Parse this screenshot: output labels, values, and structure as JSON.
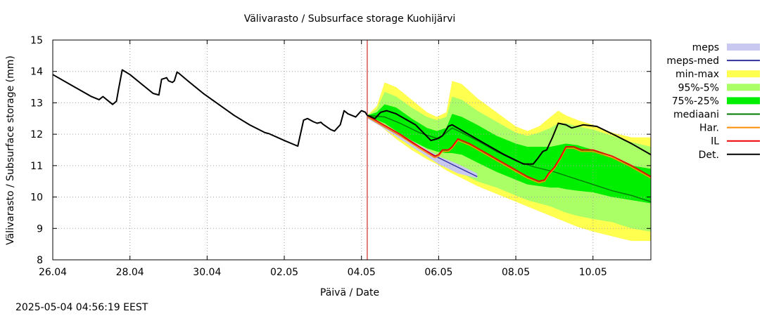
{
  "chart_data": {
    "type": "line",
    "title": "Välivarasto / Subsurface storage  Kuohijärvi",
    "xlabel": "Päivä / Date",
    "ylabel": "Välivarasto / Subsurface storage (mm)",
    "ylim": [
      8,
      15
    ],
    "xlim": [
      0,
      15.5
    ],
    "xticks": [
      {
        "x": 0,
        "label": "26.04"
      },
      {
        "x": 2,
        "label": "28.04"
      },
      {
        "x": 4,
        "label": "30.04"
      },
      {
        "x": 6,
        "label": "02.05"
      },
      {
        "x": 8,
        "label": "04.05"
      },
      {
        "x": 10,
        "label": "06.05"
      },
      {
        "x": 12,
        "label": "08.05"
      },
      {
        "x": 14,
        "label": "10.05"
      }
    ],
    "yticks": [
      8,
      9,
      10,
      11,
      12,
      13,
      14,
      15
    ],
    "grid": true,
    "legend_position": "right",
    "forecast_start_x": 8.15,
    "legend": [
      {
        "label": "meps",
        "color": "#c8c8f0",
        "kind": "band"
      },
      {
        "label": "meps-med",
        "color": "#3030a0",
        "kind": "line"
      },
      {
        "label": "min-max",
        "color": "#ffff50",
        "kind": "band"
      },
      {
        "label": "95%-5%",
        "color": "#aaff66",
        "kind": "band"
      },
      {
        "label": "75%-25%",
        "color": "#00ee00",
        "kind": "band"
      },
      {
        "label": "mediaani",
        "color": "#007a00",
        "kind": "line"
      },
      {
        "label": "Har.",
        "color": "#ff8c00",
        "kind": "line"
      },
      {
        "label": "IL",
        "color": "#ee0000",
        "kind": "line"
      },
      {
        "label": "Det.",
        "color": "#000000",
        "kind": "line"
      }
    ],
    "series": [
      {
        "name": "Det. (observed)",
        "color": "#000000",
        "x": [
          0,
          0.5,
          1,
          1.2,
          1.3,
          1.45,
          1.55,
          1.65,
          1.7,
          1.8,
          2,
          2.3,
          2.6,
          2.75,
          2.82,
          2.95,
          3.0,
          3.1,
          3.15,
          3.22,
          3.26,
          3.5,
          3.9,
          4.3,
          4.7,
          5.1,
          5.5,
          5.6,
          6,
          6.35,
          6.5,
          6.6,
          6.75,
          6.85,
          6.95,
          7.0,
          7.2,
          7.3,
          7.45,
          7.55,
          7.65,
          7.75,
          7.85,
          8.0,
          8.1,
          8.15
        ],
        "y": [
          13.9,
          13.55,
          13.2,
          13.1,
          13.2,
          13.05,
          12.95,
          13.05,
          13.4,
          14.05,
          13.9,
          13.6,
          13.3,
          13.25,
          13.75,
          13.8,
          13.7,
          13.65,
          13.7,
          13.98,
          13.95,
          13.7,
          13.3,
          12.95,
          12.6,
          12.3,
          12.05,
          12.02,
          11.8,
          11.62,
          12.45,
          12.5,
          12.4,
          12.35,
          12.38,
          12.32,
          12.15,
          12.1,
          12.3,
          12.75,
          12.65,
          12.6,
          12.55,
          12.75,
          12.7,
          12.6
        ]
      },
      {
        "name": "Det. (forecast)",
        "color": "#000000",
        "x": [
          8.15,
          8.35,
          8.5,
          8.65,
          8.9,
          9.4,
          9.8,
          9.95,
          10.1,
          10.25,
          10.35,
          10.7,
          11.2,
          11.7,
          12.2,
          12.45,
          12.55,
          12.7,
          12.8,
          12.95,
          13.1,
          13.3,
          13.45,
          13.75,
          14.1,
          14.6,
          15.0,
          15.5
        ],
        "y": [
          12.6,
          12.5,
          12.7,
          12.75,
          12.65,
          12.3,
          11.8,
          11.85,
          11.95,
          12.25,
          12.3,
          12.05,
          11.7,
          11.35,
          11.05,
          11.05,
          11.2,
          11.45,
          11.5,
          11.9,
          12.35,
          12.3,
          12.2,
          12.3,
          12.25,
          11.95,
          11.7,
          11.35
        ]
      },
      {
        "name": "IL",
        "color": "#ee0000",
        "x": [
          8.15,
          8.5,
          9.0,
          9.5,
          9.9,
          10.0,
          10.1,
          10.25,
          10.35,
          10.5,
          10.8,
          11.3,
          11.8,
          12.3,
          12.6,
          12.75,
          12.85,
          13.0,
          13.15,
          13.3,
          13.5,
          13.7,
          14.0,
          14.5,
          15.0,
          15.5
        ],
        "y": [
          12.6,
          12.35,
          12.0,
          11.6,
          11.3,
          11.35,
          11.5,
          11.5,
          11.6,
          11.85,
          11.7,
          11.35,
          11.0,
          10.65,
          10.5,
          10.55,
          10.75,
          10.95,
          11.25,
          11.6,
          11.6,
          11.5,
          11.5,
          11.3,
          11.0,
          10.65
        ]
      },
      {
        "name": "Har.",
        "color": "#ff8c00",
        "x": [
          8.15,
          8.5,
          9.0,
          9.5,
          9.9,
          10.0,
          10.1,
          10.25,
          10.35,
          10.5,
          10.8,
          11.3,
          11.8,
          12.3,
          12.6,
          12.75,
          12.85,
          13.0,
          13.15,
          13.3,
          13.5,
          13.7,
          14.0,
          14.5,
          15.0,
          15.5
        ],
        "y": [
          12.55,
          12.3,
          11.95,
          11.55,
          11.25,
          11.3,
          11.45,
          11.45,
          11.55,
          11.8,
          11.65,
          11.3,
          10.95,
          10.6,
          10.45,
          10.5,
          10.7,
          10.9,
          11.2,
          11.55,
          11.55,
          11.45,
          11.45,
          11.25,
          10.95,
          10.6
        ]
      },
      {
        "name": "meps-med",
        "color": "#3030a0",
        "x": [
          8.15,
          8.5,
          9.0,
          9.5,
          10.0,
          10.5,
          11.0
        ],
        "y": [
          12.55,
          12.3,
          11.95,
          11.6,
          11.25,
          10.95,
          10.65
        ]
      },
      {
        "name": "mediaani",
        "color": "#007a00",
        "x": [
          8.15,
          8.6,
          9.0,
          9.5,
          10.0,
          10.35,
          10.6,
          11.0,
          11.5,
          12.0,
          12.5,
          13.0,
          13.5,
          14.0,
          14.5,
          15.0,
          15.5
        ],
        "y": [
          12.6,
          12.55,
          12.35,
          12.05,
          11.85,
          12.2,
          12.05,
          11.8,
          11.45,
          11.15,
          10.95,
          10.8,
          10.6,
          10.4,
          10.2,
          10.05,
          9.85
        ]
      }
    ],
    "bands": [
      {
        "name": "meps",
        "color": "#c8c8f0",
        "x": [
          8.15,
          8.5,
          9.0,
          9.5,
          10.0,
          10.5,
          11.0
        ],
        "lower": [
          12.5,
          12.25,
          11.85,
          11.45,
          11.05,
          10.75,
          10.6
        ],
        "upper": [
          12.6,
          12.35,
          12.0,
          11.65,
          11.3,
          11.05,
          10.75
        ]
      },
      {
        "name": "min-max",
        "color": "#ffff50",
        "x": [
          8.15,
          8.4,
          8.6,
          8.9,
          9.3,
          9.7,
          9.95,
          10.2,
          10.35,
          10.6,
          11.0,
          11.5,
          12.0,
          12.3,
          12.6,
          12.9,
          13.1,
          13.3,
          13.6,
          14.0,
          14.5,
          15.0,
          15.5
        ],
        "lower": [
          12.55,
          12.35,
          12.15,
          11.85,
          11.5,
          11.2,
          11.05,
          10.85,
          10.75,
          10.6,
          10.35,
          10.1,
          9.85,
          9.7,
          9.55,
          9.4,
          9.3,
          9.2,
          9.05,
          8.9,
          8.75,
          8.6,
          8.6
        ],
        "upper": [
          12.6,
          12.9,
          13.65,
          13.5,
          13.1,
          12.7,
          12.55,
          12.7,
          13.7,
          13.6,
          13.15,
          12.7,
          12.25,
          12.1,
          12.25,
          12.55,
          12.75,
          12.6,
          12.45,
          12.3,
          12.05,
          11.9,
          11.9
        ]
      },
      {
        "name": "95%-5%",
        "color": "#aaff66",
        "x": [
          8.15,
          8.4,
          8.6,
          8.9,
          9.3,
          9.7,
          9.95,
          10.2,
          10.35,
          10.6,
          11.0,
          11.5,
          12.0,
          12.3,
          12.6,
          12.9,
          13.1,
          13.3,
          13.6,
          14.0,
          14.5,
          15.0,
          15.5
        ],
        "lower": [
          12.55,
          12.4,
          12.25,
          11.95,
          11.6,
          11.3,
          11.15,
          11.0,
          10.9,
          10.75,
          10.5,
          10.3,
          10.05,
          9.9,
          9.8,
          9.7,
          9.6,
          9.5,
          9.4,
          9.3,
          9.2,
          9.0,
          8.9
        ],
        "upper": [
          12.6,
          12.8,
          13.35,
          13.2,
          12.85,
          12.55,
          12.45,
          12.55,
          13.2,
          13.1,
          12.75,
          12.4,
          12.05,
          11.95,
          12.05,
          12.2,
          12.35,
          12.35,
          12.25,
          12.15,
          11.95,
          11.75,
          11.6
        ]
      },
      {
        "name": "75%-25%",
        "color": "#00ee00",
        "x": [
          8.15,
          8.4,
          8.6,
          8.9,
          9.3,
          9.7,
          9.95,
          10.2,
          10.35,
          10.6,
          11.0,
          11.5,
          12.0,
          12.3,
          12.6,
          12.9,
          13.1,
          13.3,
          13.6,
          14.0,
          14.5,
          15.0,
          15.5
        ],
        "lower": [
          12.55,
          12.45,
          12.35,
          12.1,
          11.8,
          11.55,
          11.45,
          11.4,
          11.4,
          11.35,
          11.1,
          10.8,
          10.55,
          10.4,
          10.35,
          10.3,
          10.3,
          10.25,
          10.2,
          10.15,
          10.0,
          9.9,
          9.8
        ],
        "upper": [
          12.6,
          12.7,
          12.95,
          12.85,
          12.5,
          12.2,
          12.1,
          12.2,
          12.65,
          12.55,
          12.3,
          11.95,
          11.7,
          11.6,
          11.6,
          11.6,
          11.65,
          11.7,
          11.65,
          11.5,
          11.25,
          11.0,
          10.9
        ]
      }
    ]
  },
  "footer": {
    "timestamp": "2025-05-04 04:56:19 EEST"
  }
}
